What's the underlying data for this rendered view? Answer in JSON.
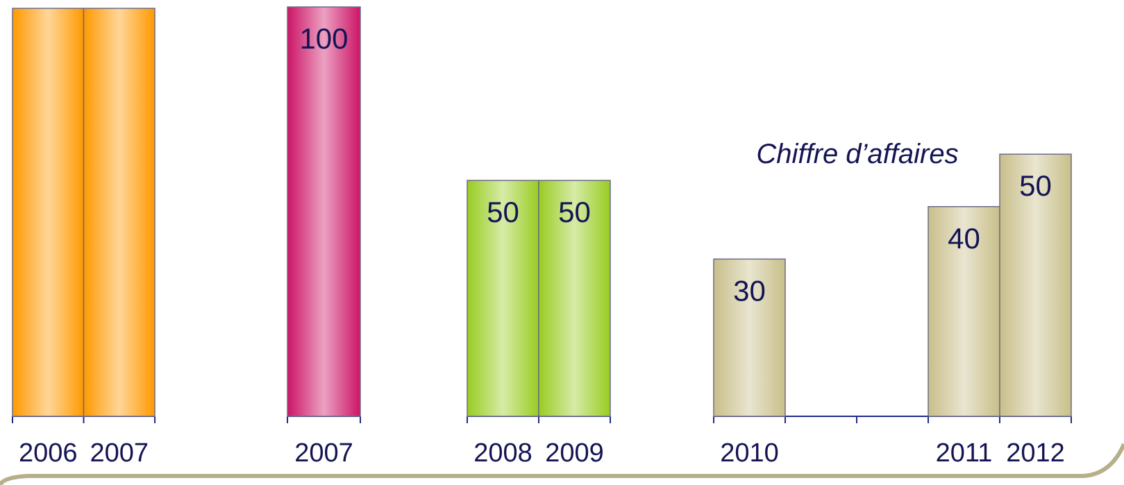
{
  "chart_data": [
    {
      "type": "bar",
      "categories": [
        "2006",
        "2007"
      ],
      "values": [
        100,
        100
      ],
      "data_labels": [
        "",
        ""
      ],
      "color": "#FF9900",
      "ylim": [
        0,
        100
      ]
    },
    {
      "type": "bar",
      "categories": [
        "2007"
      ],
      "values": [
        100
      ],
      "data_labels": [
        "100"
      ],
      "color": "#CC1466",
      "ylim": [
        0,
        100
      ]
    },
    {
      "type": "bar",
      "categories": [
        "2008",
        "2009"
      ],
      "values": [
        50,
        50
      ],
      "data_labels": [
        "50",
        "50"
      ],
      "color": "#99CC22",
      "ylim": [
        0,
        100
      ]
    },
    {
      "type": "bar",
      "title": "Chiffre d’affaires",
      "categories": [
        "2010",
        "",
        "",
        "2011",
        "2012"
      ],
      "values": [
        30,
        null,
        null,
        40,
        50
      ],
      "data_labels": [
        "30",
        "",
        "",
        "40",
        "50"
      ],
      "color": "#C8BF8A",
      "ylim": [
        0,
        90
      ]
    }
  ],
  "colors": {
    "text": "#141454",
    "axis": "#1E2A8C"
  }
}
